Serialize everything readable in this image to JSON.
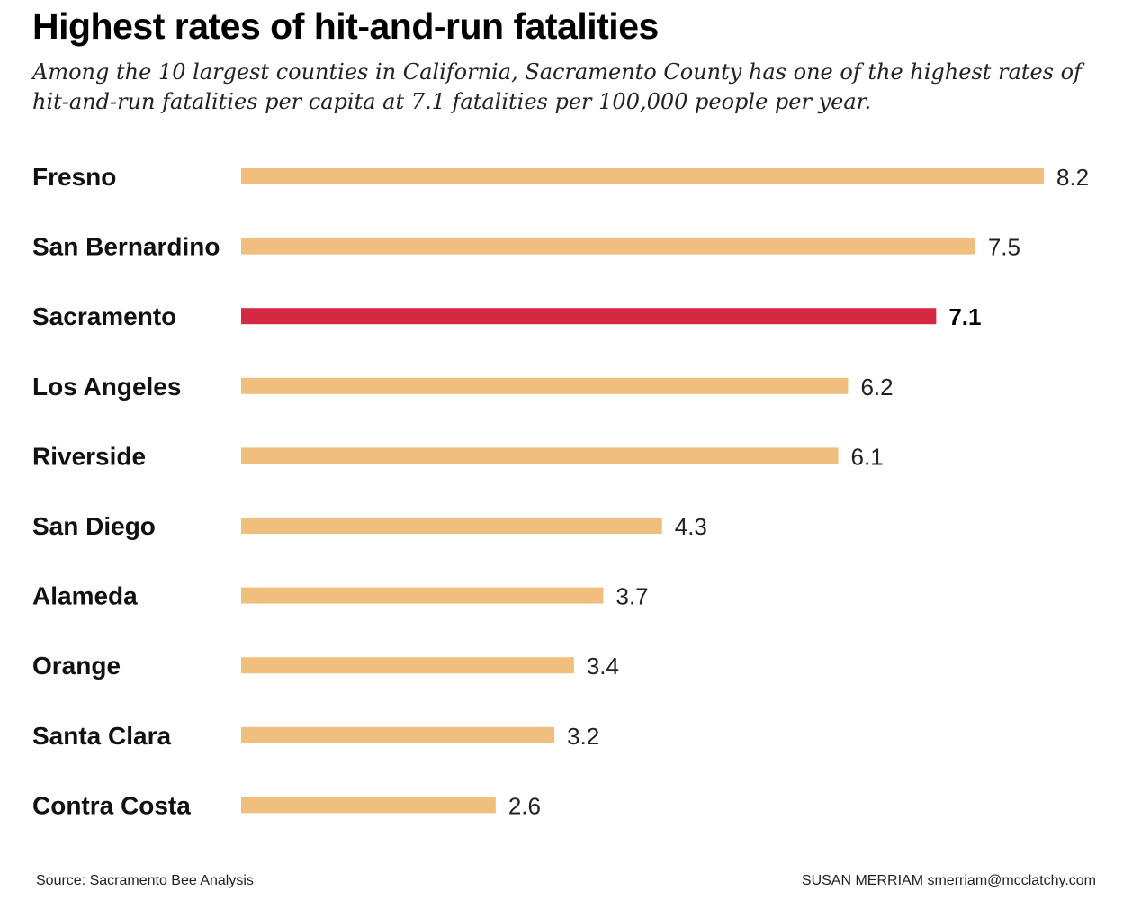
{
  "chart_data": {
    "type": "bar",
    "orientation": "horizontal",
    "title": "Highest rates of hit-and-run fatalities",
    "subtitle": "Among the 10 largest counties in California, Sacramento County has one of the highest rates of hit-and-run fatalities per capita at 7.1 fatalities per 100,000 people per year.",
    "categories": [
      "Fresno",
      "San Bernardino",
      "Sacramento",
      "Los Angeles",
      "Riverside",
      "San Diego",
      "Alameda",
      "Orange",
      "Santa Clara",
      "Contra Costa"
    ],
    "values": [
      8.2,
      7.5,
      7.1,
      6.2,
      6.1,
      4.3,
      3.7,
      3.4,
      3.2,
      2.6
    ],
    "value_labels": [
      "8.2",
      "7.5",
      "7.1",
      "6.2",
      "6.1",
      "4.3",
      "3.7",
      "3.4",
      "3.2",
      "2.6"
    ],
    "highlight": "Sacramento",
    "xlim": [
      0,
      8.2
    ],
    "grid": false,
    "xlabel": "",
    "ylabel": ""
  },
  "colors": {
    "bar": "#f0bf7e",
    "highlight": "#d42a41",
    "text": "#111111"
  },
  "footer": {
    "source": "Source: Sacramento Bee Analysis",
    "credit": "SUSAN MERRIAM  smerriam@mcclatchy.com"
  }
}
